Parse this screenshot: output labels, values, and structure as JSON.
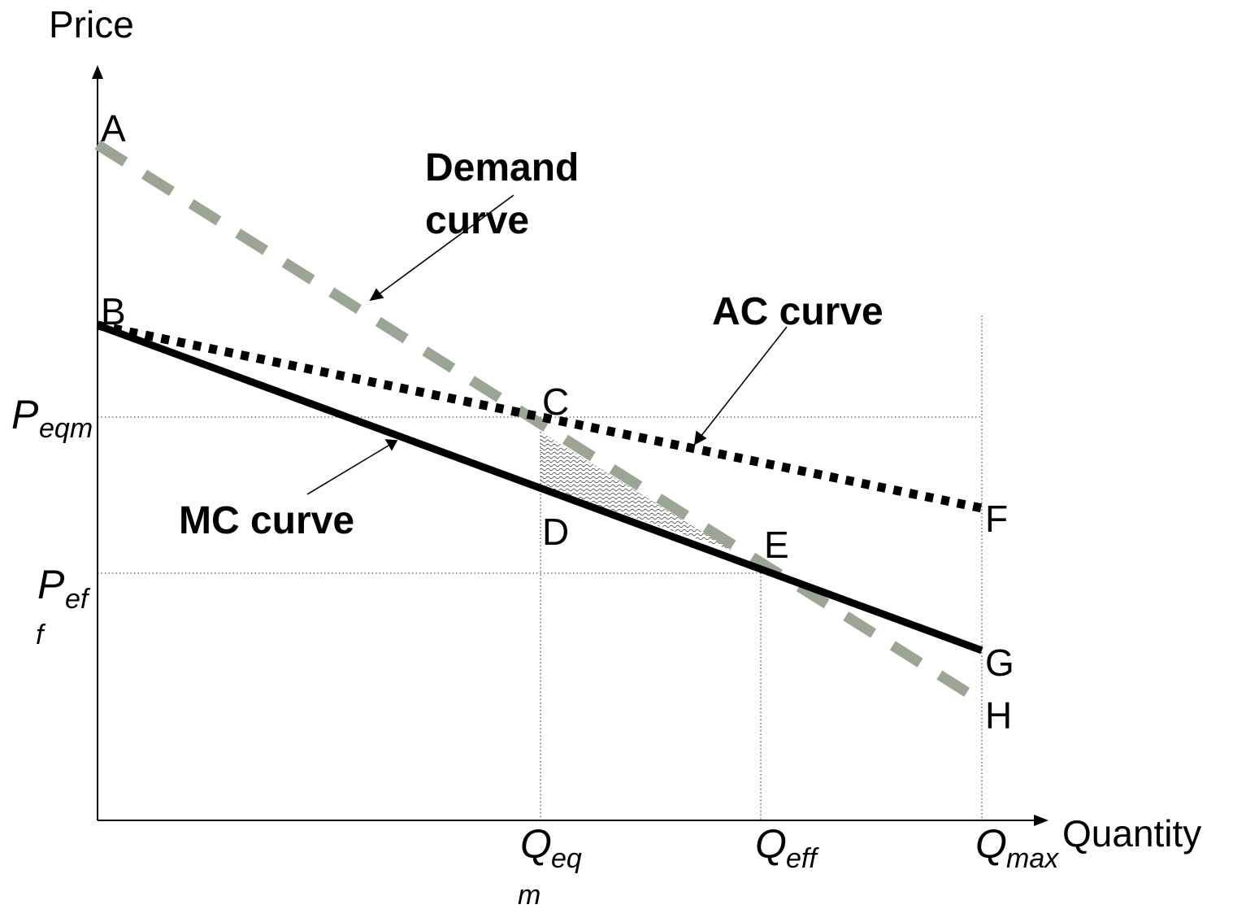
{
  "axes": {
    "y_title": "Price",
    "x_title": "Quantity"
  },
  "points": {
    "A": "A",
    "B": "B",
    "C": "C",
    "D": "D",
    "E": "E",
    "F": "F",
    "G": "G",
    "H": "H"
  },
  "curves": {
    "demand_line1": "Demand",
    "demand_line2": "curve",
    "ac": "AC curve",
    "mc": "MC curve"
  },
  "y_ticks": {
    "p_eqm_symbol": "P",
    "p_eqm_sub": "eqm",
    "p_eff_symbol": "P",
    "p_eff_sub1": "ef",
    "p_eff_sub2": "f"
  },
  "x_ticks": {
    "q_eqm_symbol": "Q",
    "q_eqm_sub1": "eq",
    "q_eqm_sub2": "m",
    "q_eff_symbol": "Q",
    "q_eff_sub": "eff",
    "q_max_symbol": "Q",
    "q_max_sub": "max"
  },
  "colors": {
    "demand": "#9aa594",
    "mc": "#000000",
    "ac": "#000000",
    "guides": "#555555"
  }
}
